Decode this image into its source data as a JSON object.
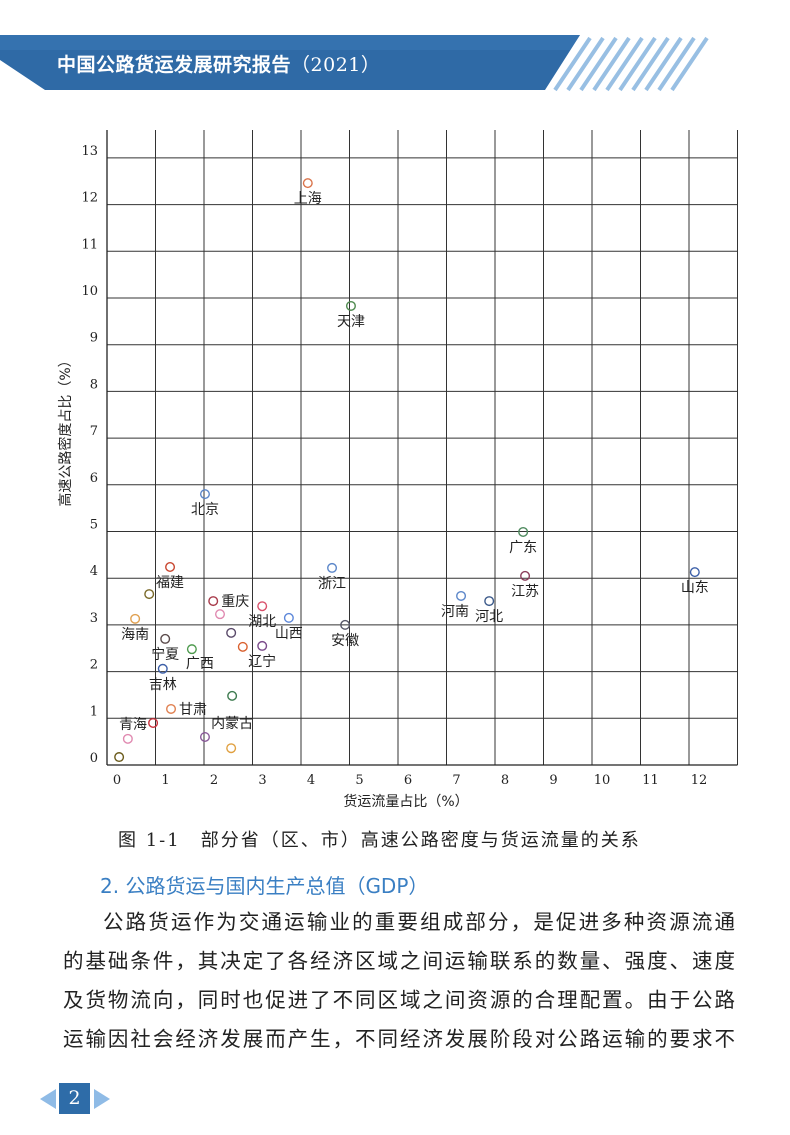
{
  "header": {
    "title": "中国公路货运发展研究报告",
    "year": "（2021）"
  },
  "chart_data": {
    "type": "scatter",
    "title": "",
    "xlabel": "货运流量占比（%）",
    "ylabel": "高速公路密度占比（%）",
    "xlim": [
      0,
      13
    ],
    "ylim": [
      0,
      13
    ],
    "xticks": [
      "0",
      "1",
      "2",
      "3",
      "4",
      "5",
      "6",
      "7",
      "8",
      "9",
      "10",
      "11",
      "12"
    ],
    "yticks": [
      "0",
      "1",
      "2",
      "3",
      "4",
      "5",
      "6",
      "7",
      "8",
      "9",
      "10",
      "11",
      "12",
      "13"
    ],
    "grid": true,
    "points": [
      {
        "label": "上海",
        "x": 4.14,
        "y": 12.46,
        "color": "#d9734a",
        "label_pos": "below"
      },
      {
        "label": "天津",
        "x": 5.03,
        "y": 9.83,
        "color": "#4e8a4e",
        "label_pos": "below"
      },
      {
        "label": "北京",
        "x": 2.02,
        "y": 5.8,
        "color": "#5b86c9",
        "label_pos": "below"
      },
      {
        "label": "广东",
        "x": 8.58,
        "y": 4.99,
        "color": "#4e8a5e",
        "label_pos": "below"
      },
      {
        "label": "山东",
        "x": 12.12,
        "y": 4.13,
        "color": "#3c5fa8",
        "label_pos": "below"
      },
      {
        "label": "浙江",
        "x": 4.64,
        "y": 4.22,
        "color": "#5b86c9",
        "label_pos": "below"
      },
      {
        "label": "江苏",
        "x": 8.62,
        "y": 4.05,
        "color": "#8a3d5a",
        "label_pos": "below"
      },
      {
        "label": "河南",
        "x": 7.3,
        "y": 3.62,
        "color": "#5b86c9",
        "label_pos": "below-left"
      },
      {
        "label": "河北",
        "x": 7.88,
        "y": 3.51,
        "color": "#3c5a8a",
        "label_pos": "below"
      },
      {
        "label": "安徽",
        "x": 4.91,
        "y": 3.0,
        "color": "#555566",
        "label_pos": "below"
      },
      {
        "label": "福建",
        "x": 1.3,
        "y": 4.24,
        "color": "#c8452e",
        "label_pos": "below"
      },
      {
        "label": "",
        "x": 0.87,
        "y": 3.66,
        "color": "#7a6a2a",
        "label_pos": "none"
      },
      {
        "label": "重庆",
        "x": 2.19,
        "y": 3.51,
        "color": "#a83a4a",
        "label_pos": "right"
      },
      {
        "label": "湖北",
        "x": 3.2,
        "y": 3.4,
        "color": "#d9506a",
        "label_pos": "below"
      },
      {
        "label": "",
        "x": 2.33,
        "y": 3.23,
        "color": "#e089b0",
        "label_pos": "none"
      },
      {
        "label": "山西",
        "x": 3.75,
        "y": 3.15,
        "color": "#5b86d9",
        "label_pos": "below"
      },
      {
        "label": "海南",
        "x": 0.58,
        "y": 3.13,
        "color": "#e0a050",
        "label_pos": "below"
      },
      {
        "label": "",
        "x": 2.56,
        "y": 2.83,
        "color": "#5a4a6a",
        "label_pos": "none"
      },
      {
        "label": "宁夏",
        "x": 1.2,
        "y": 2.7,
        "color": "#5a4a4a",
        "label_pos": "below"
      },
      {
        "label": "广西",
        "x": 1.75,
        "y": 2.48,
        "color": "#4e9a4e",
        "label_pos": "below-right"
      },
      {
        "label": "",
        "x": 2.8,
        "y": 2.53,
        "color": "#d9602e",
        "label_pos": "none"
      },
      {
        "label": "辽宁",
        "x": 3.2,
        "y": 2.55,
        "color": "#7a4a8a",
        "label_pos": "below"
      },
      {
        "label": "吉林",
        "x": 1.15,
        "y": 2.06,
        "color": "#3c5fa8",
        "label_pos": "below"
      },
      {
        "label": "内蒙古",
        "x": 2.58,
        "y": 1.48,
        "color": "#3c7a4e",
        "label_pos": "below-far"
      },
      {
        "label": "甘肃",
        "x": 1.32,
        "y": 1.2,
        "color": "#e08050",
        "label_pos": "right"
      },
      {
        "label": "青海",
        "x": 0.95,
        "y": 0.9,
        "color": "#c8303a",
        "label_pos": "left"
      },
      {
        "label": "",
        "x": 0.43,
        "y": 0.56,
        "color": "#e089b0",
        "label_pos": "none"
      },
      {
        "label": "",
        "x": 2.02,
        "y": 0.6,
        "color": "#8a5a9a",
        "label_pos": "none"
      },
      {
        "label": "",
        "x": 2.56,
        "y": 0.36,
        "color": "#e0a040",
        "label_pos": "none"
      },
      {
        "label": "",
        "x": 0.25,
        "y": 0.17,
        "color": "#6a5a1a",
        "label_pos": "none"
      }
    ]
  },
  "caption": "图 1-1　部分省（区、市）高速公路密度与货运流量的关系",
  "section_heading": "2. 公路货运与国内生产总值（GDP）",
  "body_lines": [
    "公路货运作为交通运输业的重要组成部分，是促进多种资源流通",
    "的基础条件，其决定了各经济区域之间运输联系的数量、强度、速度",
    "及货物流向，同时也促进了不同区域之间资源的合理配置。由于公路",
    "运输因社会经济发展而产生，不同经济发展阶段对公路运输的要求不"
  ],
  "page_number": "2",
  "colors": {
    "brand_blue": "#2e6ca8",
    "heading_blue": "#3a7fc3"
  }
}
